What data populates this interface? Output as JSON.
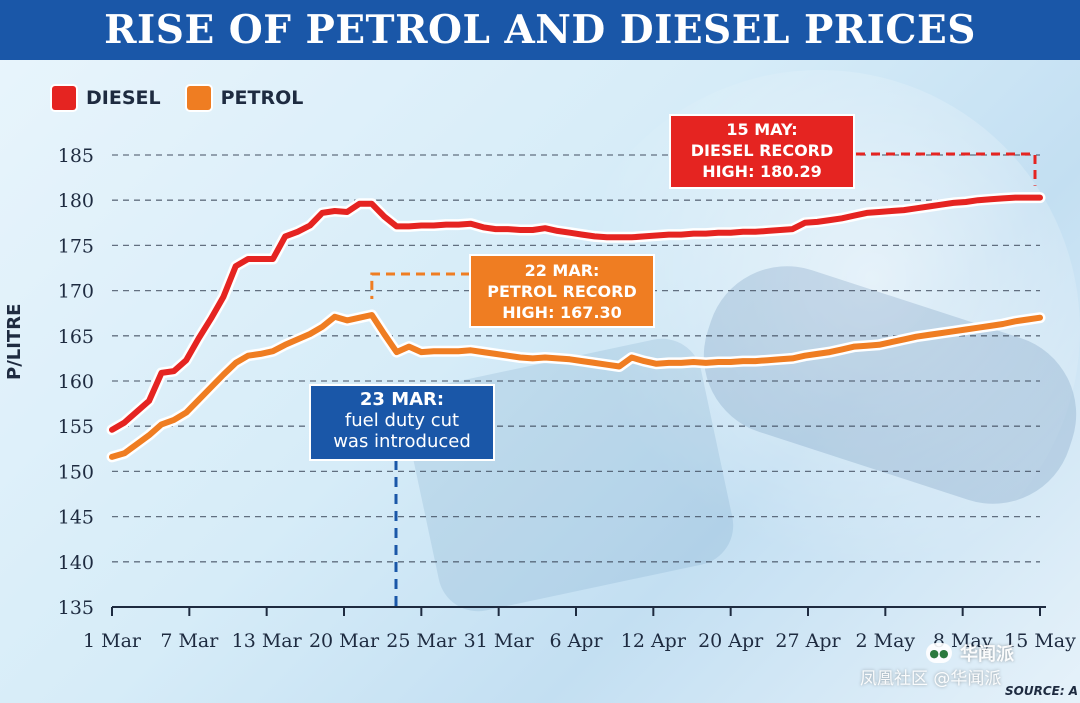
{
  "title": "RISE OF PETROL AND DIESEL PRICES",
  "colors": {
    "diesel": "#e52421",
    "petrol": "#ef7d22",
    "duty": "#1a57a8",
    "title_bg": "#1a57a8"
  },
  "chart_data": {
    "type": "line",
    "title": "RISE OF PETROL AND DIESEL PRICES",
    "xlabel": "",
    "ylabel": "P/LITRE",
    "ylim": [
      135,
      185
    ],
    "yticks": [
      135,
      140,
      145,
      150,
      155,
      160,
      165,
      170,
      175,
      180,
      185
    ],
    "x_tick_labels": [
      "1 Mar",
      "7 Mar",
      "13 Mar",
      "20 Mar",
      "25 Mar",
      "31 Mar",
      "6 Apr",
      "12 Apr",
      "20 Apr",
      "27 Apr",
      "2 May",
      "8 May",
      "15 May"
    ],
    "grid": true,
    "legend_position": "top-left",
    "x_start_date": "1 Mar",
    "x": [
      0,
      1,
      2,
      3,
      4,
      5,
      6,
      7,
      8,
      9,
      10,
      11,
      12,
      13,
      14,
      15,
      16,
      17,
      18,
      19,
      20,
      21,
      22,
      23,
      24,
      25,
      26,
      27,
      28,
      29,
      30,
      31,
      32,
      33,
      34,
      35,
      36,
      37,
      38,
      39,
      40,
      41,
      42,
      43,
      44,
      45,
      46,
      47,
      48,
      49,
      50,
      51,
      52,
      53,
      54,
      55,
      56,
      57,
      58,
      59,
      60,
      61,
      62,
      63,
      64,
      65,
      66,
      67,
      68,
      69,
      70,
      71,
      72,
      73,
      74,
      75
    ],
    "series": [
      {
        "name": "DIESEL",
        "color": "#e52421",
        "values": [
          154.6,
          155.4,
          156.6,
          157.8,
          160.9,
          161.1,
          162.3,
          164.7,
          166.9,
          169.3,
          172.7,
          173.5,
          173.5,
          173.5,
          176.0,
          176.5,
          177.2,
          178.6,
          178.8,
          178.7,
          179.6,
          179.6,
          178.2,
          177.1,
          177.1,
          177.2,
          177.2,
          177.3,
          177.3,
          177.4,
          177.0,
          176.8,
          176.8,
          176.7,
          176.7,
          176.9,
          176.6,
          176.4,
          176.2,
          176.0,
          175.9,
          175.9,
          175.9,
          176.0,
          176.1,
          176.2,
          176.2,
          176.3,
          176.3,
          176.4,
          176.4,
          176.5,
          176.5,
          176.6,
          176.7,
          176.8,
          177.5,
          177.6,
          177.8,
          178.0,
          178.3,
          178.6,
          178.7,
          178.8,
          178.9,
          179.1,
          179.3,
          179.5,
          179.7,
          179.8,
          180.0,
          180.1,
          180.2,
          180.29,
          180.29,
          180.29
        ],
        "annotation": {
          "date": "15 MAY",
          "lines": [
            "15 MAY:",
            "DIESEL RECORD",
            "HIGH: 180.29"
          ],
          "value": 180.29
        }
      },
      {
        "name": "PETROL",
        "color": "#ef7d22",
        "values": [
          151.6,
          152.0,
          153.0,
          154.0,
          155.2,
          155.7,
          156.5,
          157.9,
          159.3,
          160.7,
          162.0,
          162.8,
          163.0,
          163.3,
          164.0,
          164.6,
          165.2,
          166.0,
          167.1,
          166.7,
          167.0,
          167.3,
          165.2,
          163.2,
          163.8,
          163.2,
          163.3,
          163.3,
          163.3,
          163.4,
          163.2,
          163.0,
          162.8,
          162.6,
          162.5,
          162.6,
          162.5,
          162.4,
          162.2,
          162.0,
          161.8,
          161.6,
          162.6,
          162.2,
          161.9,
          162.0,
          162.0,
          162.1,
          162.0,
          162.1,
          162.1,
          162.2,
          162.2,
          162.3,
          162.4,
          162.5,
          162.8,
          163.0,
          163.2,
          163.5,
          163.8,
          163.9,
          164.0,
          164.3,
          164.6,
          164.9,
          165.1,
          165.3,
          165.5,
          165.7,
          165.9,
          166.1,
          166.3,
          166.6,
          166.8,
          167.0
        ],
        "annotation": {
          "date": "22 MAR",
          "lines": [
            "22 MAR:",
            "PETROL RECORD",
            "HIGH: 167.30"
          ],
          "value": 167.3
        }
      }
    ],
    "annotations": [
      {
        "date": "23 MAR",
        "lines": [
          "23 MAR:",
          "fuel duty cut",
          "was introduced"
        ]
      }
    ]
  },
  "watermark": {
    "brand": "华闻派",
    "line": "凤凰社区 @华闻派"
  },
  "source": "SOURCE: A"
}
